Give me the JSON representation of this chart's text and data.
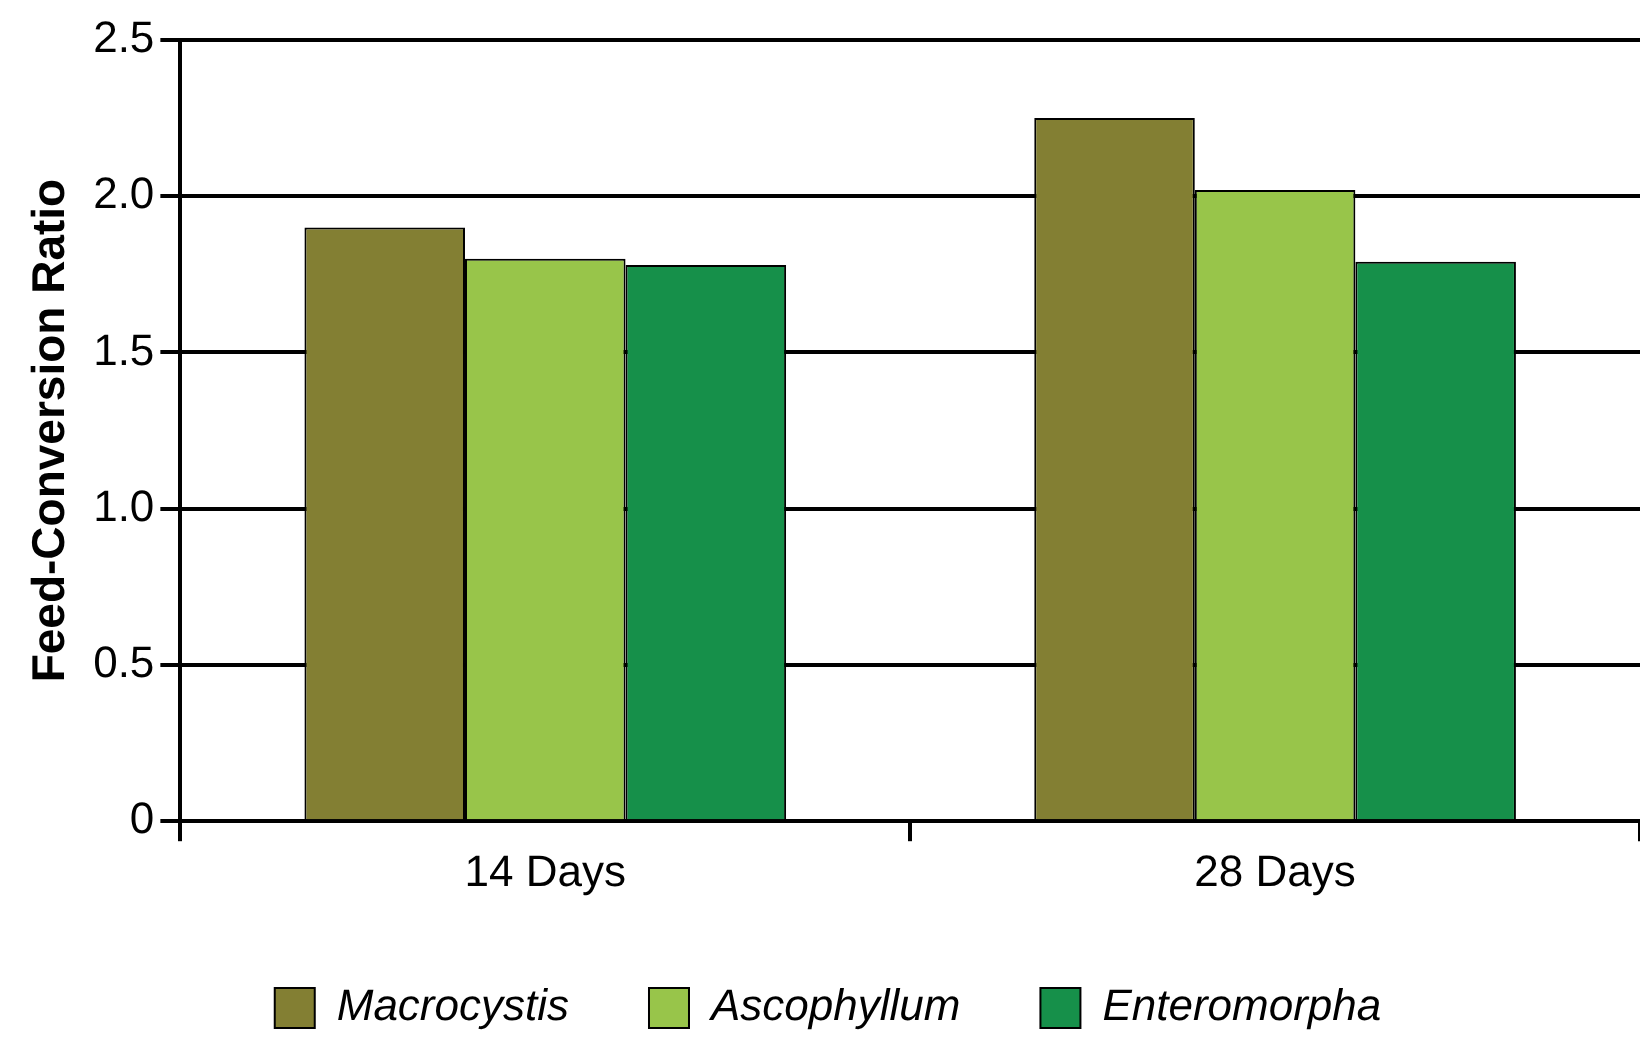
{
  "chart_data": {
    "type": "bar",
    "ylabel": "Feed-Conversion Ratio",
    "categories": [
      "14 Days",
      "28 Days"
    ],
    "series": [
      {
        "name": "Macrocystis",
        "color": "#837f33",
        "values": [
          1.9,
          2.25
        ]
      },
      {
        "name": "Ascophyllum",
        "color": "#98c54a",
        "values": [
          1.8,
          2.02
        ]
      },
      {
        "name": "Enteromorpha",
        "color": "#16904a",
        "values": [
          1.78,
          1.79
        ]
      }
    ],
    "ylim": [
      0,
      2.5
    ],
    "yticks": [
      0,
      0.5,
      {
        "value": 1,
        "label": "1.0"
      },
      1.5,
      {
        "value": 2,
        "label": "2.0"
      },
      2.5
    ],
    "grid": "y",
    "legend": "bottom"
  }
}
